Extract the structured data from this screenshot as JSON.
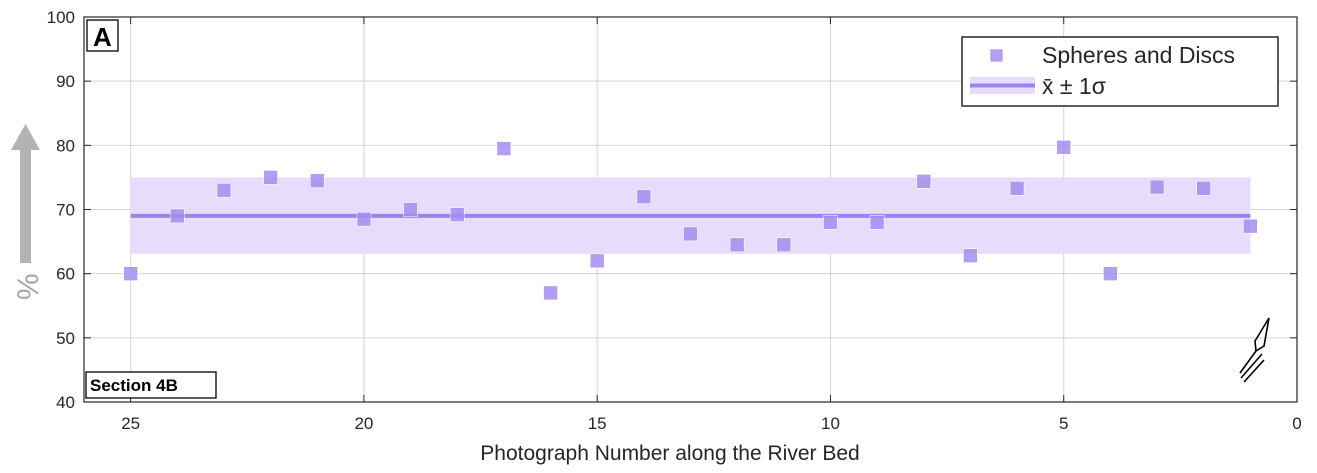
{
  "chart_data": {
    "type": "scatter",
    "title": "",
    "xlabel": "Photograph Number along the River Bed",
    "ylabel": "%",
    "xlim": [
      0,
      26
    ],
    "x_reversed": true,
    "ylim": [
      40,
      100
    ],
    "xticks": [
      25,
      20,
      15,
      10,
      5,
      0
    ],
    "yticks": [
      40,
      50,
      60,
      70,
      80,
      90,
      100
    ],
    "grid": true,
    "legend_position": "top-right",
    "series": [
      {
        "name": "Spheres and Discs",
        "marker": "square",
        "color": "#a58ef0",
        "x": [
          25,
          24,
          23,
          22,
          21,
          20,
          19,
          18,
          17,
          16,
          15,
          14,
          13,
          12,
          11,
          10,
          9,
          8,
          7,
          6,
          5,
          4,
          3,
          2,
          1
        ],
        "y": [
          60,
          69,
          73,
          75,
          74.5,
          68.5,
          70,
          69.2,
          79.5,
          57,
          62,
          72,
          66.2,
          64.5,
          64.5,
          68,
          68,
          74.4,
          62.8,
          73.3,
          79.7,
          60,
          73.5,
          73.3,
          67.4
        ]
      }
    ],
    "mean_band": {
      "name": "x̄ ± 1σ",
      "mean": 69,
      "lower": 63.1,
      "upper": 75,
      "x_range": [
        25,
        1
      ],
      "line_color": "#9e82ee",
      "band_color": "#e5ddfb"
    },
    "panel_label": "A",
    "section_label": "Section 4B",
    "axis_break_symbol": "≈"
  }
}
